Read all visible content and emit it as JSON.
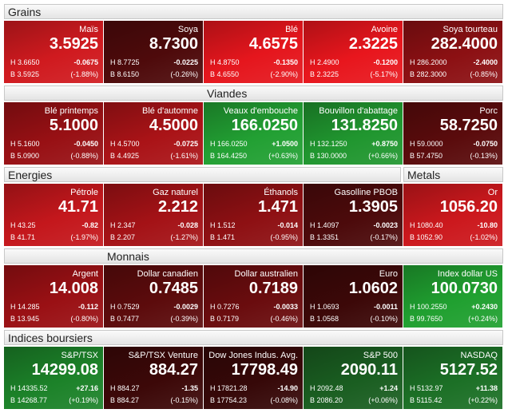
{
  "rows": [
    {
      "headers": [
        "Grains"
      ],
      "tiles": [
        {
          "name": "Maïs",
          "price": "3.5925",
          "high": "H 3.6650",
          "change": "-0.0675",
          "low": "B 3.5925",
          "pct": "(-1.88%)",
          "color": "#d01a1f"
        },
        {
          "name": "Soya",
          "price": "8.7300",
          "high": "H 8.7725",
          "change": "-0.0225",
          "low": "B 8.6150",
          "pct": "(-0.26%)",
          "color": "#4e0a0b"
        },
        {
          "name": "Blé",
          "price": "4.6575",
          "high": "H 4.8750",
          "change": "-0.1350",
          "low": "B 4.6550",
          "pct": "(-2.90%)",
          "color": "#e5161d"
        },
        {
          "name": "Avoine",
          "price": "2.3225",
          "high": "H 2.4900",
          "change": "-0.1200",
          "low": "B 2.3225",
          "pct": "(-5.17%)",
          "color": "#e8161d"
        },
        {
          "name": "Soya tourteau",
          "price": "282.4000",
          "high": "H 286.2000",
          "change": "-2.4000",
          "low": "B 282.3000",
          "pct": "(-0.85%)",
          "color": "#8c1013"
        }
      ]
    },
    {
      "headers": [
        "Viandes"
      ],
      "tiles": [
        {
          "name": "Blé printemps",
          "price": "5.1000",
          "high": "H 5.1600",
          "change": "-0.0450",
          "low": "B 5.0900",
          "pct": "(-0.88%)",
          "color": "#981014"
        },
        {
          "name": "Blé d'automne",
          "price": "4.5000",
          "high": "H 4.5700",
          "change": "-0.0725",
          "low": "B 4.4925",
          "pct": "(-1.61%)",
          "color": "#aa1317"
        },
        {
          "name": "Veaux d'embouche",
          "price": "166.0250",
          "high": "H 166.0250",
          "change": "+1.0500",
          "low": "B 164.4250",
          "pct": "(+0.63%)",
          "color": "#22a033"
        },
        {
          "name": "Bouvillon d'abattage",
          "price": "131.8250",
          "high": "H 132.1250",
          "change": "+0.8750",
          "low": "B 130.0000",
          "pct": "(+0.66%)",
          "color": "#20962f"
        },
        {
          "name": "Porc",
          "price": "58.7250",
          "high": "H 59.0000",
          "change": "-0.0750",
          "low": "B 57.4750",
          "pct": "(-0.13%)",
          "color": "#5a0b0c"
        }
      ]
    },
    {
      "headers": [
        "Energies",
        "Metals"
      ],
      "tiles": [
        {
          "name": "Pétrole",
          "price": "41.71",
          "high": "H 43.25",
          "change": "-0.82",
          "low": "B 41.71",
          "pct": "(-1.97%)",
          "color": "#c4171c"
        },
        {
          "name": "Gaz naturel",
          "price": "2.212",
          "high": "H 2.347",
          "change": "-0.028",
          "low": "B 2.207",
          "pct": "(-1.27%)",
          "color": "#a41216"
        },
        {
          "name": "Éthanols",
          "price": "1.471",
          "high": "H 1.512",
          "change": "-0.014",
          "low": "B 1.471",
          "pct": "(-0.95%)",
          "color": "#8e1013"
        },
        {
          "name": "Gasolline PBOB",
          "price": "1.3905",
          "high": "H 1.4097",
          "change": "-0.0023",
          "low": "B 1.3351",
          "pct": "(-0.17%)",
          "color": "#4c0a0b"
        },
        {
          "name": "Or",
          "price": "1056.20",
          "high": "H 1080.40",
          "change": "-10.80",
          "low": "B 1052.90",
          "pct": "(-1.02%)",
          "color": "#cc181d"
        }
      ]
    },
    {
      "headers": [
        "Monnais"
      ],
      "tiles": [
        {
          "name": "Argent",
          "price": "14.008",
          "high": "H 14.285",
          "change": "-0.112",
          "low": "B 13.945",
          "pct": "(-0.80%)",
          "color": "#9a1014"
        },
        {
          "name": "Dollar canadien",
          "price": "0.7485",
          "high": "H 0.7529",
          "change": "-0.0029",
          "low": "B 0.7477",
          "pct": "(-0.39%)",
          "color": "#5c0b0c"
        },
        {
          "name": "Dollar australien",
          "price": "0.7189",
          "high": "H 0.7276",
          "change": "-0.0033",
          "low": "B 0.7179",
          "pct": "(-0.46%)",
          "color": "#6a0c0e"
        },
        {
          "name": "Euro",
          "price": "1.0602",
          "high": "H 1.0693",
          "change": "-0.0011",
          "low": "B 1.0568",
          "pct": "(-0.10%)",
          "color": "#3c0808"
        },
        {
          "name": "Index dollar US",
          "price": "100.0730",
          "high": "H 100.2550",
          "change": "+0.2430",
          "low": "B 99.7650",
          "pct": "(+0.24%)",
          "color": "#20a030"
        }
      ]
    },
    {
      "headers": [
        "Indices boursiers"
      ],
      "tiles": [
        {
          "name": "S&P/TSX",
          "price": "14299.08",
          "high": "H 14335.52",
          "change": "+27.16",
          "low": "B 14268.77",
          "pct": "(+0.19%)",
          "color": "#1c8229"
        },
        {
          "name": "S&P/TSX Venture",
          "price": "884.27",
          "high": "H 884.27",
          "change": "-1.35",
          "low": "B 884.27",
          "pct": "(-0.15%)",
          "color": "#3c0808"
        },
        {
          "name": "Dow Jones Indus. Avg.",
          "price": "17798.49",
          "high": "H 17821.28",
          "change": "-14.90",
          "low": "B 17754.23",
          "pct": "(-0.08%)",
          "color": "#360808"
        },
        {
          "name": "S&P 500",
          "price": "2090.11",
          "high": "H 2092.48",
          "change": "+1.24",
          "low": "B 2086.20",
          "pct": "(+0.06%)",
          "color": "#1a5e21"
        },
        {
          "name": "NASDAQ",
          "price": "5127.52",
          "high": "H 5132.97",
          "change": "+11.38",
          "low": "B 5115.42",
          "pct": "(+0.22%)",
          "color": "#1c7026"
        }
      ]
    }
  ]
}
